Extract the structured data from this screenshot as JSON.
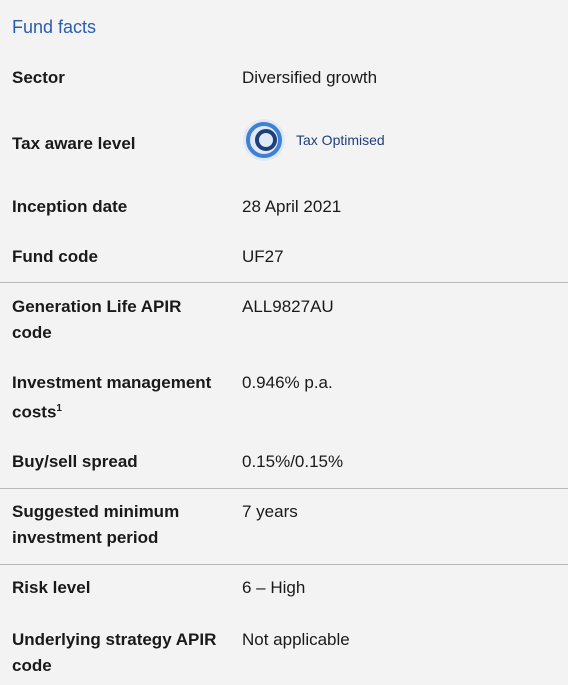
{
  "header": {
    "title": "Fund facts"
  },
  "rows": [
    {
      "label": "Sector",
      "value": "Diversified growth"
    },
    {
      "label": "Tax aware level",
      "value": "Tax Optimised"
    },
    {
      "label": "Inception date",
      "value": "28 April 2021"
    },
    {
      "label": "Fund code",
      "value": "UF27"
    },
    {
      "label": "Generation Life APIR code",
      "value": "ALL9827AU"
    },
    {
      "label": "Investment management costs",
      "footnote": "1",
      "value": "0.946% p.a."
    },
    {
      "label": "Buy/sell spread",
      "value": "0.15%/0.15%"
    },
    {
      "label": "Suggested minimum investment period",
      "value": "7 years"
    },
    {
      "label": "Risk level",
      "value": "6 – High"
    },
    {
      "label": "Underlying strategy APIR code",
      "value": "Not applicable"
    }
  ]
}
